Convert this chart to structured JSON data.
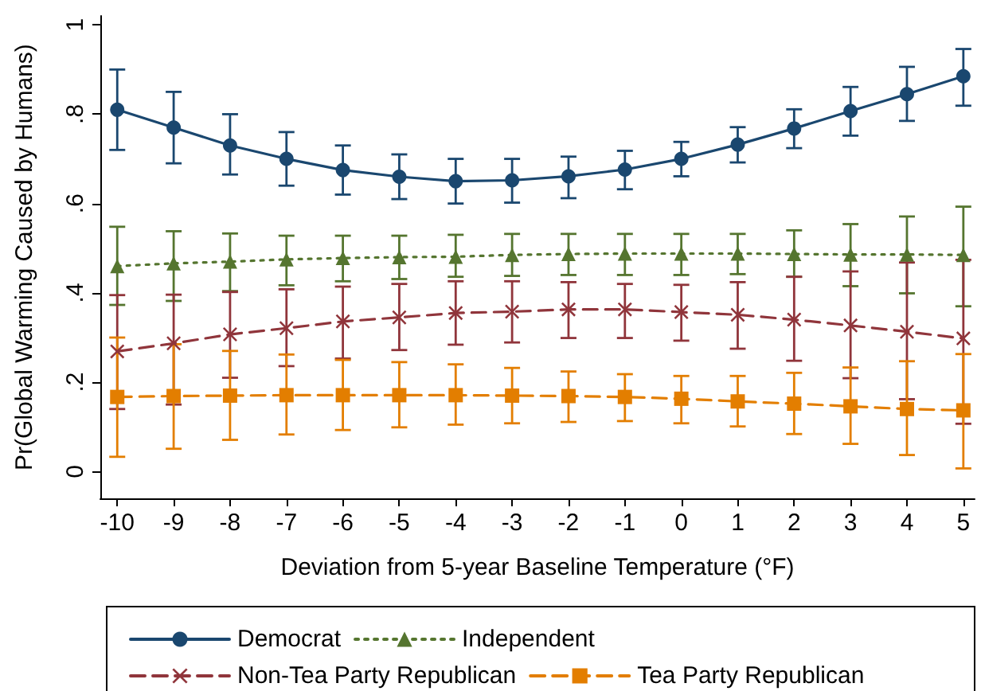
{
  "chart_data": {
    "type": "line",
    "xlabel": "Deviation from 5-year Baseline Temperature (°F)",
    "ylabel": "Pr(Global Warming Caused by Humans)",
    "x": [
      -10,
      -9,
      -8,
      -7,
      -6,
      -5,
      -4,
      -3,
      -2,
      -1,
      0,
      1,
      2,
      3,
      4,
      5
    ],
    "xlim": [
      -10.3,
      5.2
    ],
    "xticks": [
      -10,
      -9,
      -8,
      -7,
      -6,
      -5,
      -4,
      -3,
      -2,
      -1,
      0,
      1,
      2,
      3,
      4,
      5
    ],
    "ylim": [
      -0.06,
      1.02
    ],
    "yticks": [
      0,
      {
        "value": 0.2,
        "label": ".2"
      },
      {
        "value": 0.4,
        "label": ".4"
      },
      {
        "value": 0.6,
        "label": ".6"
      },
      {
        "value": 0.8,
        "label": ".8"
      },
      1
    ],
    "grid": false,
    "legend": "bottom",
    "series": [
      {
        "name": "Democrat",
        "color": "#1a476f",
        "marker": "circle",
        "line_style": "solid",
        "values": [
          0.81,
          0.77,
          0.73,
          0.7,
          0.675,
          0.66,
          0.65,
          0.652,
          0.661,
          0.676,
          0.7,
          0.732,
          0.768,
          0.807,
          0.845,
          0.885
        ],
        "errors": [
          [
            0.72,
            0.9
          ],
          [
            0.69,
            0.85
          ],
          [
            0.665,
            0.8
          ],
          [
            0.64,
            0.76
          ],
          [
            0.62,
            0.73
          ],
          [
            0.61,
            0.71
          ],
          [
            0.6,
            0.7
          ],
          [
            0.602,
            0.7
          ],
          [
            0.612,
            0.705
          ],
          [
            0.632,
            0.718
          ],
          [
            0.661,
            0.738
          ],
          [
            0.692,
            0.771
          ],
          [
            0.724,
            0.811
          ],
          [
            0.752,
            0.861
          ],
          [
            0.785,
            0.906
          ],
          [
            0.819,
            0.946
          ]
        ]
      },
      {
        "name": "Independent",
        "color": "#55752f",
        "marker": "triangle",
        "line_style": "dotted",
        "values": [
          0.46,
          0.466,
          0.47,
          0.475,
          0.478,
          0.48,
          0.481,
          0.485,
          0.487,
          0.488,
          0.488,
          0.488,
          0.487,
          0.486,
          0.486,
          0.485
        ],
        "errors": [
          [
            0.373,
            0.548
          ],
          [
            0.382,
            0.538
          ],
          [
            0.404,
            0.533
          ],
          [
            0.417,
            0.528
          ],
          [
            0.426,
            0.528
          ],
          [
            0.431,
            0.528
          ],
          [
            0.436,
            0.53
          ],
          [
            0.438,
            0.532
          ],
          [
            0.44,
            0.532
          ],
          [
            0.44,
            0.532
          ],
          [
            0.44,
            0.532
          ],
          [
            0.442,
            0.532
          ],
          [
            0.436,
            0.54
          ],
          [
            0.415,
            0.554
          ],
          [
            0.399,
            0.571
          ],
          [
            0.37,
            0.593
          ]
        ]
      },
      {
        "name": "Non-Tea Party Republican",
        "color": "#90353b",
        "marker": "cross",
        "line_style": "dashed",
        "values": [
          0.269,
          0.287,
          0.307,
          0.321,
          0.336,
          0.345,
          0.355,
          0.358,
          0.363,
          0.363,
          0.357,
          0.351,
          0.34,
          0.327,
          0.313,
          0.298
        ],
        "errors": [
          [
            0.14,
            0.395
          ],
          [
            0.15,
            0.396
          ],
          [
            0.21,
            0.402
          ],
          [
            0.236,
            0.408
          ],
          [
            0.253,
            0.414
          ],
          [
            0.272,
            0.42
          ],
          [
            0.284,
            0.426
          ],
          [
            0.289,
            0.426
          ],
          [
            0.299,
            0.424
          ],
          [
            0.299,
            0.42
          ],
          [
            0.293,
            0.418
          ],
          [
            0.275,
            0.424
          ],
          [
            0.248,
            0.436
          ],
          [
            0.209,
            0.448
          ],
          [
            0.162,
            0.468
          ],
          [
            0.107,
            0.474
          ]
        ]
      },
      {
        "name": "Tea Party Republican",
        "color": "#e37e00",
        "marker": "square",
        "line_style": "dashed",
        "values": [
          0.167,
          0.169,
          0.17,
          0.171,
          0.171,
          0.171,
          0.171,
          0.17,
          0.169,
          0.167,
          0.163,
          0.157,
          0.152,
          0.146,
          0.14,
          0.137
        ],
        "errors": [
          [
            0.033,
            0.3
          ],
          [
            0.051,
            0.285
          ],
          [
            0.071,
            0.27
          ],
          [
            0.083,
            0.262
          ],
          [
            0.093,
            0.25
          ],
          [
            0.099,
            0.245
          ],
          [
            0.105,
            0.24
          ],
          [
            0.108,
            0.232
          ],
          [
            0.111,
            0.224
          ],
          [
            0.113,
            0.218
          ],
          [
            0.108,
            0.214
          ],
          [
            0.101,
            0.214
          ],
          [
            0.084,
            0.221
          ],
          [
            0.062,
            0.233
          ],
          [
            0.037,
            0.247
          ],
          [
            0.007,
            0.263
          ]
        ]
      }
    ]
  }
}
